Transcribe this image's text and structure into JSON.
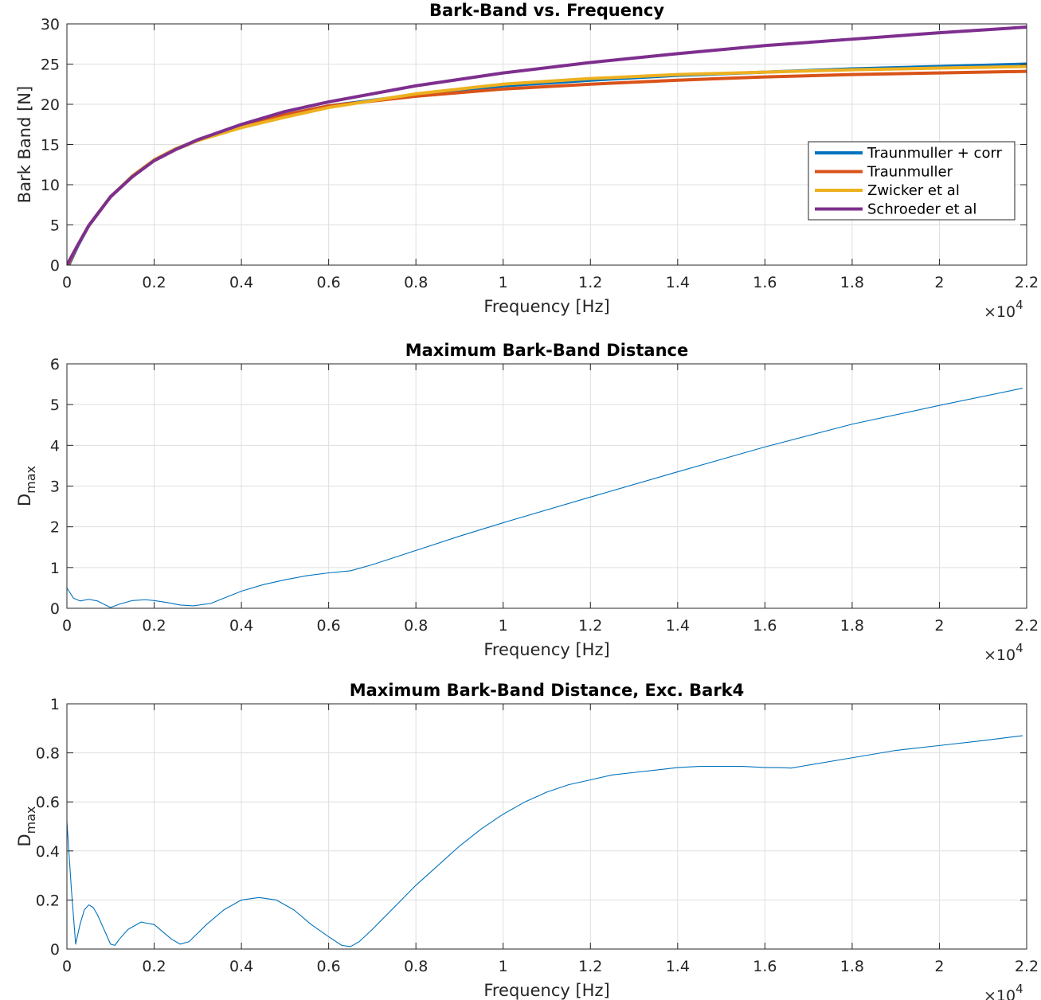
{
  "colors": {
    "traunmuller_corr": "#0072BD",
    "traunmuller": "#D95319",
    "zwicker": "#EDB120",
    "schroeder": "#7E2F8E",
    "dmax": "#0072BD"
  },
  "chart_data": [
    {
      "type": "line",
      "title": "Bark-Band vs. Frequency",
      "xlabel": "Frequency [Hz]",
      "ylabel": "Bark Band [N]",
      "x_exponent_label": "×10",
      "x_exponent": "4",
      "xlim": [
        0,
        22000
      ],
      "ylim": [
        0,
        30
      ],
      "xticks": [
        0,
        2000,
        4000,
        6000,
        8000,
        10000,
        12000,
        14000,
        16000,
        18000,
        20000,
        22000
      ],
      "xtick_labels": [
        "0",
        "0.2",
        "0.4",
        "0.6",
        "0.8",
        "1",
        "1.2",
        "1.4",
        "1.6",
        "1.8",
        "2",
        "2.2"
      ],
      "yticks": [
        0,
        5,
        10,
        15,
        20,
        25,
        30
      ],
      "ytick_labels": [
        "0",
        "5",
        "10",
        "15",
        "20",
        "25",
        "30"
      ],
      "grid": true,
      "legend_position": "right",
      "series": [
        {
          "name": "Traunmuller + corr",
          "color": "#0072BD",
          "x": [
            0,
            250,
            500,
            1000,
            1500,
            2000,
            2500,
            3000,
            4000,
            5000,
            6000,
            8000,
            10000,
            12000,
            14000,
            16000,
            18000,
            20000,
            22000
          ],
          "y": [
            -0.5,
            2.4,
            4.9,
            8.5,
            11.0,
            13.0,
            14.4,
            15.5,
            17.3,
            18.7,
            19.8,
            21.2,
            22.3,
            23.0,
            23.6,
            24.0,
            24.4,
            24.7,
            25.0
          ]
        },
        {
          "name": "Traunmuller",
          "color": "#D95319",
          "x": [
            0,
            250,
            500,
            1000,
            1500,
            2000,
            2500,
            3000,
            4000,
            5000,
            6000,
            8000,
            10000,
            12000,
            14000,
            16000,
            18000,
            20000,
            22000
          ],
          "y": [
            -0.3,
            2.5,
            4.9,
            8.5,
            11.0,
            13.0,
            14.4,
            15.5,
            17.3,
            18.7,
            19.8,
            21.0,
            21.9,
            22.5,
            23.0,
            23.4,
            23.7,
            23.9,
            24.1
          ]
        },
        {
          "name": "Zwicker et al",
          "color": "#EDB120",
          "x": [
            0,
            250,
            500,
            1000,
            1500,
            2000,
            2500,
            3000,
            4000,
            5000,
            6000,
            8000,
            10000,
            12000,
            14000,
            16000,
            18000,
            20000,
            22000
          ],
          "y": [
            0,
            2.5,
            4.9,
            8.5,
            11.1,
            13.1,
            14.5,
            15.5,
            17.1,
            18.4,
            19.6,
            21.3,
            22.5,
            23.2,
            23.7,
            24.0,
            24.3,
            24.5,
            24.7
          ]
        },
        {
          "name": "Schroeder et al",
          "color": "#7E2F8E",
          "x": [
            0,
            250,
            500,
            1000,
            1500,
            2000,
            2500,
            3000,
            4000,
            5000,
            6000,
            8000,
            10000,
            12000,
            14000,
            16000,
            18000,
            20000,
            22000
          ],
          "y": [
            0,
            2.5,
            4.9,
            8.5,
            11.0,
            13.0,
            14.4,
            15.6,
            17.5,
            19.1,
            20.3,
            22.3,
            23.9,
            25.2,
            26.3,
            27.3,
            28.1,
            28.9,
            29.6
          ]
        }
      ]
    },
    {
      "type": "line",
      "title": "Maximum Bark-Band Distance",
      "xlabel": "Frequency [Hz]",
      "ylabel": "D",
      "ylabel_sub": "max",
      "x_exponent_label": "×10",
      "x_exponent": "4",
      "xlim": [
        0,
        22000
      ],
      "ylim": [
        0,
        6
      ],
      "xticks": [
        0,
        2000,
        4000,
        6000,
        8000,
        10000,
        12000,
        14000,
        16000,
        18000,
        20000,
        22000
      ],
      "xtick_labels": [
        "0",
        "0.2",
        "0.4",
        "0.6",
        "0.8",
        "1",
        "1.2",
        "1.4",
        "1.6",
        "1.8",
        "2",
        "2.2"
      ],
      "yticks": [
        0,
        1,
        2,
        3,
        4,
        5,
        6
      ],
      "ytick_labels": [
        "0",
        "1",
        "2",
        "3",
        "4",
        "5",
        "6"
      ],
      "grid": true,
      "series": [
        {
          "color": "#0072BD",
          "x": [
            0,
            150,
            300,
            500,
            700,
            900,
            1000,
            1200,
            1500,
            1800,
            2000,
            2300,
            2600,
            2900,
            3100,
            3300,
            3600,
            4000,
            4500,
            5000,
            5500,
            6000,
            6500,
            7000,
            8000,
            9000,
            10000,
            12000,
            14000,
            16000,
            18000,
            20000,
            21900
          ],
          "y": [
            0.5,
            0.25,
            0.18,
            0.22,
            0.18,
            0.07,
            0.02,
            0.1,
            0.19,
            0.21,
            0.19,
            0.14,
            0.08,
            0.06,
            0.09,
            0.12,
            0.25,
            0.42,
            0.58,
            0.7,
            0.8,
            0.87,
            0.92,
            1.07,
            1.42,
            1.77,
            2.1,
            2.73,
            3.35,
            3.96,
            4.52,
            4.98,
            5.4
          ]
        }
      ]
    },
    {
      "type": "line",
      "title": "Maximum Bark-Band Distance, Exc. Bark4",
      "xlabel": "Frequency [Hz]",
      "ylabel": "D",
      "ylabel_sub": "max",
      "x_exponent_label": "×10",
      "x_exponent": "4",
      "xlim": [
        0,
        22000
      ],
      "ylim": [
        0,
        1
      ],
      "xticks": [
        0,
        2000,
        4000,
        6000,
        8000,
        10000,
        12000,
        14000,
        16000,
        18000,
        20000,
        22000
      ],
      "xtick_labels": [
        "0",
        "0.2",
        "0.4",
        "0.6",
        "0.8",
        "1",
        "1.2",
        "1.4",
        "1.6",
        "1.8",
        "2",
        "2.2"
      ],
      "yticks": [
        0,
        0.2,
        0.4,
        0.6,
        0.8,
        1
      ],
      "ytick_labels": [
        "0",
        "0.2",
        "0.4",
        "0.6",
        "0.8",
        "1"
      ],
      "grid": true,
      "series": [
        {
          "color": "#0072BD",
          "x": [
            0,
            100,
            200,
            300,
            400,
            500,
            600,
            700,
            800,
            900,
            1000,
            1100,
            1200,
            1400,
            1700,
            2000,
            2200,
            2400,
            2600,
            2800,
            3200,
            3600,
            4000,
            4400,
            4800,
            5200,
            5600,
            6000,
            6300,
            6500,
            6700,
            7000,
            7500,
            8000,
            8500,
            9000,
            9500,
            10000,
            10500,
            11000,
            11500,
            12000,
            12500,
            13000,
            13500,
            14000,
            14500,
            15000,
            15500,
            16000,
            16300,
            16600,
            17000,
            18000,
            19000,
            20000,
            21000,
            21900
          ],
          "y": [
            0.52,
            0.25,
            0.02,
            0.1,
            0.16,
            0.18,
            0.17,
            0.14,
            0.1,
            0.06,
            0.02,
            0.015,
            0.04,
            0.08,
            0.11,
            0.1,
            0.07,
            0.04,
            0.02,
            0.03,
            0.1,
            0.16,
            0.2,
            0.21,
            0.2,
            0.16,
            0.1,
            0.05,
            0.015,
            0.01,
            0.03,
            0.08,
            0.17,
            0.26,
            0.34,
            0.42,
            0.49,
            0.55,
            0.6,
            0.64,
            0.67,
            0.69,
            0.71,
            0.72,
            0.73,
            0.74,
            0.745,
            0.745,
            0.745,
            0.74,
            0.74,
            0.738,
            0.75,
            0.78,
            0.81,
            0.83,
            0.85,
            0.87
          ]
        }
      ]
    }
  ]
}
